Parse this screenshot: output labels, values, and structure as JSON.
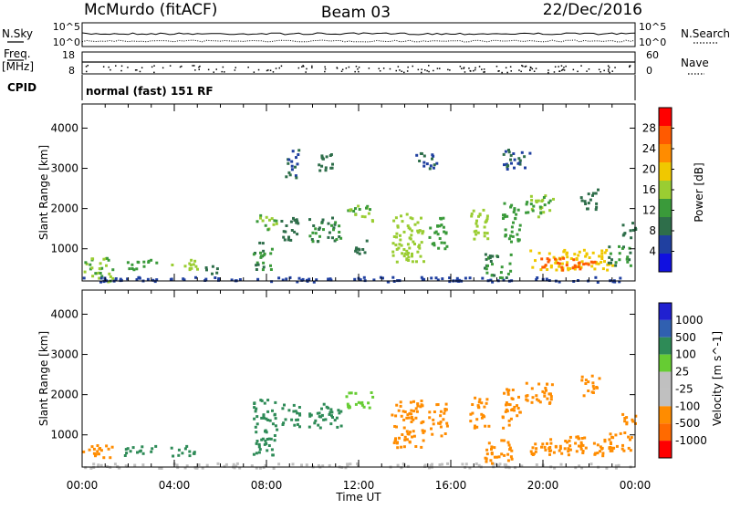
{
  "header": {
    "title": "McMurdo (fitACF)",
    "beam": "Beam 03",
    "date": "22/Dec/2016"
  },
  "noise_panel": {
    "left_label": "N.Sky",
    "left_ticks": [
      "10^5",
      "10^0"
    ],
    "right_label": "N.Search",
    "right_ticks": [
      "10^5",
      "10^0"
    ]
  },
  "freq_panel": {
    "left_label_1": "Freq.",
    "left_label_2": "[MHz]",
    "left_ticks": [
      "18",
      "8"
    ],
    "right_label": "Nave",
    "right_ticks": [
      "60",
      "0"
    ]
  },
  "cpid": {
    "label": "CPID",
    "mode_text": "normal (fast) 151 RF"
  },
  "colors": {
    "power_scale": [
      "#1010e0",
      "#2040a0",
      "#2e6e4a",
      "#3a9a3a",
      "#9acd32",
      "#f0c800",
      "#ff8c00",
      "#ff5a00",
      "#ff0000"
    ],
    "velocity_scale": [
      "#2020d0",
      "#3060b0",
      "#2e8b57",
      "#66cc33",
      "#c0c0c0",
      "#c0c0c0",
      "#ff8c00",
      "#ff6a00",
      "#ff0000"
    ]
  },
  "chart_data": [
    {
      "type": "heatmap",
      "name": "power",
      "ylabel": "Slant Range [km]",
      "y_ticks": [
        1000,
        2000,
        3000,
        4000
      ],
      "ylim": [
        200,
        4600
      ],
      "xlim_hours": [
        0,
        24
      ],
      "colorbar": {
        "label": "Power [dB]",
        "ticks": [
          4,
          8,
          12,
          16,
          20,
          24,
          28
        ],
        "range": [
          0,
          32
        ]
      },
      "echo_regions": [
        {
          "t0": 0.0,
          "t1": 1.3,
          "r0": 200,
          "r1": 800,
          "v": 16
        },
        {
          "t0": 0.0,
          "t1": 24.0,
          "r0": 200,
          "r1": 320,
          "v": 6
        },
        {
          "t0": 1.8,
          "t1": 3.2,
          "r0": 500,
          "r1": 750,
          "v": 14
        },
        {
          "t0": 3.8,
          "t1": 5.0,
          "r0": 500,
          "r1": 750,
          "v": 18
        },
        {
          "t0": 5.3,
          "t1": 6.0,
          "r0": 400,
          "r1": 600,
          "v": 10
        },
        {
          "t0": 7.4,
          "t1": 8.2,
          "r0": 500,
          "r1": 1200,
          "v": 12
        },
        {
          "t0": 7.5,
          "t1": 8.4,
          "r0": 1500,
          "r1": 1900,
          "v": 16
        },
        {
          "t0": 8.6,
          "t1": 9.4,
          "r0": 1200,
          "r1": 1800,
          "v": 10
        },
        {
          "t0": 8.8,
          "t1": 9.4,
          "r0": 2800,
          "r1": 3500,
          "v": 8
        },
        {
          "t0": 9.8,
          "t1": 11.2,
          "r0": 1200,
          "r1": 1800,
          "v": 12
        },
        {
          "t0": 10.2,
          "t1": 11.0,
          "r0": 2900,
          "r1": 3400,
          "v": 10
        },
        {
          "t0": 11.4,
          "t1": 12.6,
          "r0": 1700,
          "r1": 2100,
          "v": 16
        },
        {
          "t0": 11.8,
          "t1": 12.4,
          "r0": 900,
          "r1": 1300,
          "v": 10
        },
        {
          "t0": 13.4,
          "t1": 14.8,
          "r0": 700,
          "r1": 1900,
          "v": 18
        },
        {
          "t0": 14.4,
          "t1": 15.4,
          "r0": 3000,
          "r1": 3400,
          "v": 8
        },
        {
          "t0": 15.0,
          "t1": 15.8,
          "r0": 1000,
          "r1": 1800,
          "v": 14
        },
        {
          "t0": 16.8,
          "t1": 17.6,
          "r0": 1200,
          "r1": 2000,
          "v": 18
        },
        {
          "t0": 17.4,
          "t1": 18.6,
          "r0": 300,
          "r1": 900,
          "v": 12
        },
        {
          "t0": 18.2,
          "t1": 19.0,
          "r0": 1200,
          "r1": 2200,
          "v": 14
        },
        {
          "t0": 18.2,
          "t1": 19.4,
          "r0": 3000,
          "r1": 3500,
          "v": 8
        },
        {
          "t0": 19.2,
          "t1": 20.4,
          "r0": 1800,
          "r1": 2400,
          "v": 16
        },
        {
          "t0": 19.4,
          "t1": 23.0,
          "r0": 500,
          "r1": 1000,
          "v": 22
        },
        {
          "t0": 19.8,
          "t1": 22.2,
          "r0": 500,
          "r1": 800,
          "v": 30
        },
        {
          "t0": 21.6,
          "t1": 22.4,
          "r0": 2000,
          "r1": 2500,
          "v": 10
        },
        {
          "t0": 22.8,
          "t1": 23.8,
          "r0": 600,
          "r1": 1100,
          "v": 12
        },
        {
          "t0": 23.4,
          "t1": 24.0,
          "r0": 1300,
          "r1": 1700,
          "v": 10
        }
      ]
    },
    {
      "type": "heatmap",
      "name": "velocity",
      "ylabel": "Slant Range [km]",
      "y_ticks": [
        1000,
        2000,
        3000,
        4000
      ],
      "ylim": [
        200,
        4600
      ],
      "xlabel": "Time UT",
      "x_ticks": [
        "00:00",
        "04:00",
        "08:00",
        "12:00",
        "16:00",
        "20:00",
        "00:00"
      ],
      "xlim_hours": [
        0,
        24
      ],
      "colorbar": {
        "label": "Velocity [m s^-1]",
        "ticks": [
          "1000",
          "500",
          "100",
          "25",
          "-25",
          "-100",
          "-500",
          "-1000"
        ]
      },
      "echo_regions": [
        {
          "t0": 0.0,
          "t1": 1.3,
          "r0": 450,
          "r1": 800,
          "v": -300
        },
        {
          "t0": 0.0,
          "t1": 24.0,
          "r0": 200,
          "r1": 320,
          "v": 0
        },
        {
          "t0": 1.8,
          "t1": 3.2,
          "r0": 500,
          "r1": 750,
          "v": 150
        },
        {
          "t0": 3.8,
          "t1": 5.0,
          "r0": 500,
          "r1": 750,
          "v": 150
        },
        {
          "t0": 7.4,
          "t1": 8.4,
          "r0": 500,
          "r1": 1900,
          "v": 150
        },
        {
          "t0": 8.6,
          "t1": 9.4,
          "r0": 1200,
          "r1": 1800,
          "v": 150
        },
        {
          "t0": 9.8,
          "t1": 11.2,
          "r0": 1200,
          "r1": 1800,
          "v": 150
        },
        {
          "t0": 11.4,
          "t1": 12.6,
          "r0": 1700,
          "r1": 2100,
          "v": 80
        },
        {
          "t0": 13.4,
          "t1": 14.8,
          "r0": 700,
          "r1": 1900,
          "v": -300
        },
        {
          "t0": 15.0,
          "t1": 15.8,
          "r0": 1000,
          "r1": 1800,
          "v": -300
        },
        {
          "t0": 16.8,
          "t1": 17.6,
          "r0": 1200,
          "r1": 2000,
          "v": -300
        },
        {
          "t0": 17.4,
          "t1": 18.6,
          "r0": 300,
          "r1": 900,
          "v": -300
        },
        {
          "t0": 18.2,
          "t1": 19.0,
          "r0": 1200,
          "r1": 2200,
          "v": -300
        },
        {
          "t0": 19.2,
          "t1": 20.4,
          "r0": 1800,
          "r1": 2400,
          "v": -300
        },
        {
          "t0": 19.4,
          "t1": 23.0,
          "r0": 500,
          "r1": 1000,
          "v": -300
        },
        {
          "t0": 21.6,
          "t1": 22.4,
          "r0": 2000,
          "r1": 2500,
          "v": -300
        },
        {
          "t0": 22.8,
          "t1": 23.8,
          "r0": 600,
          "r1": 1100,
          "v": -300
        },
        {
          "t0": 23.4,
          "t1": 24.0,
          "r0": 1300,
          "r1": 1700,
          "v": -300
        }
      ]
    }
  ]
}
